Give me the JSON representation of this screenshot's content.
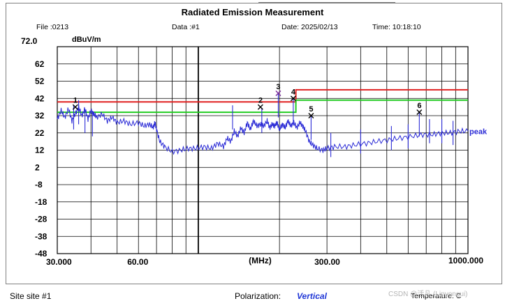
{
  "header": {
    "title": "Radiated Emission Measurement",
    "file": "File :0213",
    "data": "Data :#1",
    "date": "Date: 2025/02/13",
    "time": "Time: 10:18:10"
  },
  "footer": {
    "site": "Site  site #1",
    "polarization_label": "Polarization:",
    "polarization_value": "Vertical",
    "temperature": "Temperature:  C"
  },
  "watermark": "CSDN @活凡 (Linyongui)",
  "chart_data": {
    "type": "line",
    "title": "Radiated Emission Measurement",
    "ylabel": "dBuV/m",
    "xlabel": "(MHz)",
    "x_scale": "log",
    "xlim": [
      30,
      1000
    ],
    "ylim": [
      -48,
      72
    ],
    "y_ticks": [
      "72.0",
      "62",
      "52",
      "42",
      "32",
      "22",
      "12",
      "2",
      "-8",
      "-18",
      "-28",
      "-38",
      "-48"
    ],
    "x_ticks": [
      "30.000",
      "60.00",
      "(MHz)",
      "300.00",
      "1000.000"
    ],
    "grid": true,
    "limits": [
      {
        "color": "#e02020",
        "points": [
          [
            30,
            40
          ],
          [
            230,
            40
          ],
          [
            230,
            47
          ],
          [
            1000,
            47
          ]
        ]
      },
      {
        "color": "#22cc22",
        "points": [
          [
            30,
            34
          ],
          [
            230,
            34
          ],
          [
            230,
            41
          ],
          [
            1000,
            41
          ]
        ]
      }
    ],
    "series": [
      {
        "name": "peak",
        "color": "#2b2bd6",
        "points": [
          [
            30,
            30
          ],
          [
            31,
            35
          ],
          [
            32,
            31
          ],
          [
            33,
            36
          ],
          [
            34,
            29
          ],
          [
            35,
            33
          ],
          [
            36,
            37
          ],
          [
            37,
            32
          ],
          [
            38,
            36
          ],
          [
            39,
            30
          ],
          [
            40,
            35
          ],
          [
            41,
            33
          ],
          [
            42,
            31
          ],
          [
            44,
            33
          ],
          [
            46,
            29
          ],
          [
            48,
            31
          ],
          [
            50,
            28
          ],
          [
            53,
            29
          ],
          [
            56,
            27
          ],
          [
            60,
            28
          ],
          [
            63,
            26
          ],
          [
            66,
            27
          ],
          [
            68,
            25
          ],
          [
            69,
            28
          ],
          [
            70,
            24
          ],
          [
            72,
            17
          ],
          [
            75,
            14
          ],
          [
            80,
            11
          ],
          [
            86,
            12
          ],
          [
            92,
            13
          ],
          [
            98,
            13
          ],
          [
            105,
            14
          ],
          [
            112,
            13
          ],
          [
            118,
            16
          ],
          [
            124,
            14
          ],
          [
            128,
            19
          ],
          [
            132,
            17
          ],
          [
            136,
            23
          ],
          [
            140,
            20
          ],
          [
            144,
            25
          ],
          [
            148,
            22
          ],
          [
            152,
            28
          ],
          [
            156,
            24
          ],
          [
            160,
            29
          ],
          [
            165,
            26
          ],
          [
            170,
            27
          ],
          [
            175,
            26
          ],
          [
            180,
            29
          ],
          [
            184,
            25
          ],
          [
            188,
            27
          ],
          [
            192,
            26
          ],
          [
            196,
            28
          ],
          [
            200,
            24
          ],
          [
            205,
            27
          ],
          [
            210,
            25
          ],
          [
            215,
            29
          ],
          [
            220,
            26
          ],
          [
            226,
            28
          ],
          [
            232,
            25
          ],
          [
            238,
            28
          ],
          [
            244,
            26
          ],
          [
            250,
            23
          ],
          [
            258,
            17
          ],
          [
            266,
            15
          ],
          [
            276,
            13
          ],
          [
            290,
            12
          ],
          [
            300,
            13
          ],
          [
            320,
            14
          ],
          [
            350,
            14
          ],
          [
            380,
            15
          ],
          [
            420,
            16
          ],
          [
            460,
            17
          ],
          [
            510,
            18
          ],
          [
            560,
            19
          ],
          [
            620,
            20
          ],
          [
            680,
            21
          ],
          [
            740,
            21
          ],
          [
            800,
            22
          ],
          [
            860,
            22
          ],
          [
            930,
            23
          ],
          [
            1000,
            23
          ]
        ],
        "spikes": [
          [
            34.5,
            38
          ],
          [
            36,
            41
          ],
          [
            38,
            36
          ],
          [
            40.5,
            34
          ],
          [
            134,
            38
          ],
          [
            172,
            36
          ],
          [
            198,
            45
          ],
          [
            225,
            42
          ],
          [
            262,
            32
          ],
          [
            310,
            22
          ],
          [
            400,
            24
          ],
          [
            520,
            26
          ],
          [
            600,
            27
          ],
          [
            660,
            34
          ],
          [
            720,
            30
          ],
          [
            800,
            30
          ],
          [
            880,
            29
          ]
        ]
      }
    ],
    "markers": [
      {
        "label": "1",
        "x": 35,
        "y": 37,
        "color": "#000000"
      },
      {
        "label": "2",
        "x": 170,
        "y": 37,
        "color": "#000000"
      },
      {
        "label": "3",
        "x": 198,
        "y": 45,
        "color": "#7a2a9a"
      },
      {
        "label": "4",
        "x": 225,
        "y": 42,
        "color": "#000000"
      },
      {
        "label": "5",
        "x": 262,
        "y": 32,
        "color": "#000000"
      },
      {
        "label": "6",
        "x": 660,
        "y": 34,
        "color": "#000000"
      }
    ],
    "series_label": "peak"
  }
}
